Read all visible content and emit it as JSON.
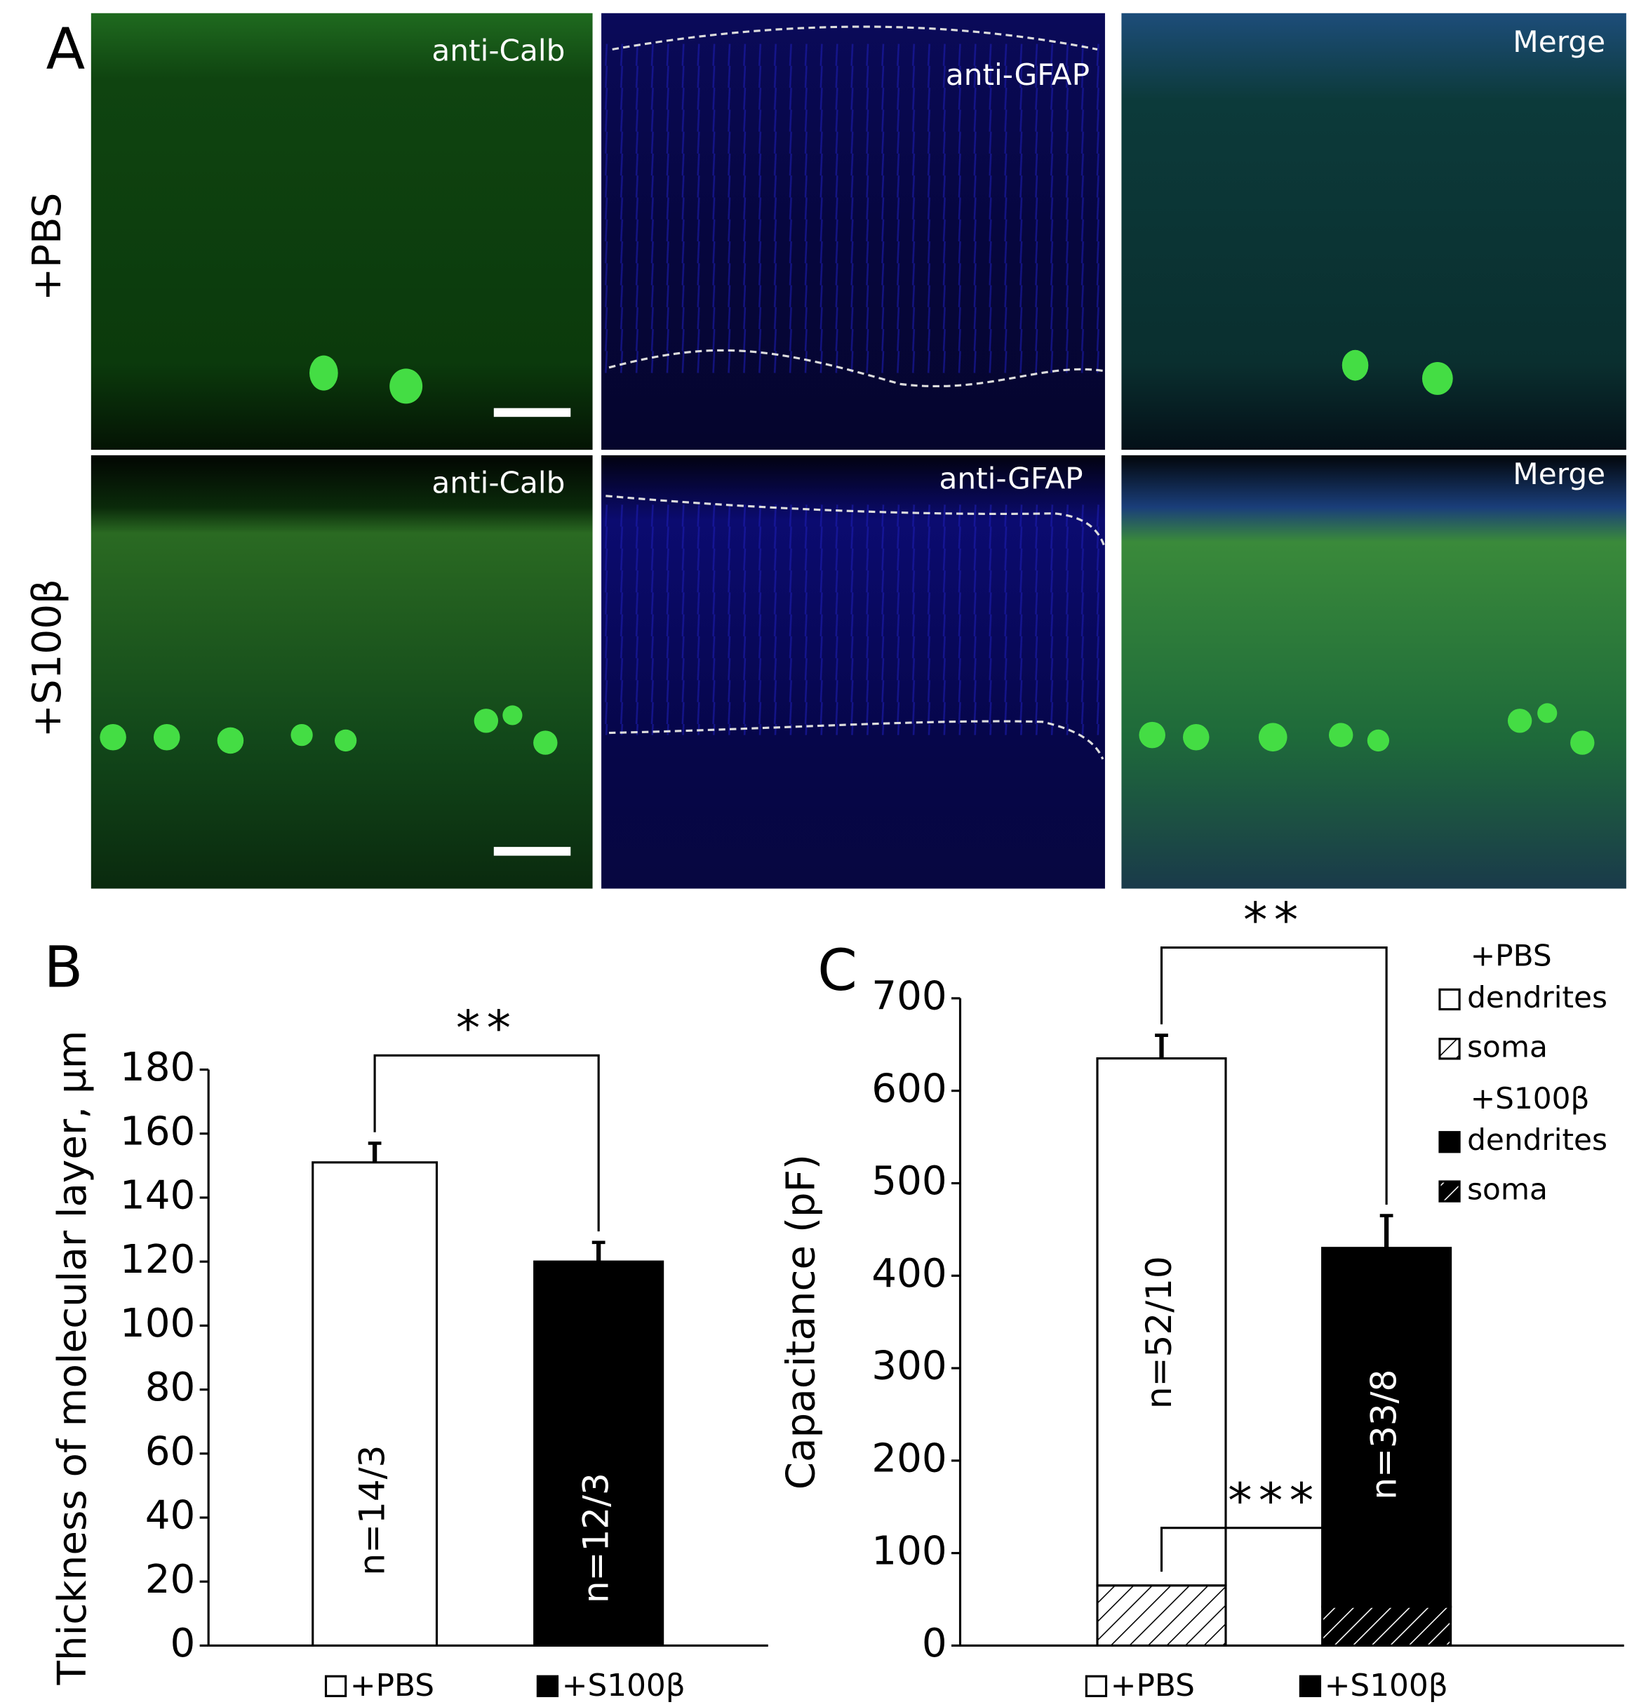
{
  "panel_a": {
    "label": "A",
    "rows": [
      "+PBS",
      "+S100β"
    ],
    "images": [
      [
        "anti-Calb",
        "anti-GFAP",
        "Merge"
      ],
      [
        "anti-Calb",
        "anti-GFAP",
        "Merge"
      ]
    ]
  },
  "chart_data": [
    {
      "type": "bar",
      "panel_label": "B",
      "y_label": "Thickness of molecular layer, µm",
      "categories": [
        "+PBS",
        "+S100β"
      ],
      "values": [
        151,
        120
      ],
      "errors": [
        6,
        6
      ],
      "colors": [
        "#ffffff",
        "#000000"
      ],
      "n_labels": [
        "n=14/3",
        "n=12/3"
      ],
      "significance": [
        "**"
      ],
      "ylim": [
        0,
        180
      ],
      "yticks": [
        0,
        20,
        40,
        60,
        80,
        100,
        120,
        140,
        160,
        180
      ]
    },
    {
      "type": "stacked_bar",
      "panel_label": "C",
      "y_label": "Capacitance (pF)",
      "categories": [
        "+PBS",
        "+S100β"
      ],
      "series": [
        {
          "name": "soma",
          "values": [
            65,
            42
          ],
          "errors": [
            3,
            4
          ]
        },
        {
          "name": "dendrites",
          "values": [
            570,
            388
          ],
          "errors": [
            25,
            35
          ]
        }
      ],
      "colors": [
        "#ffffff",
        "#000000"
      ],
      "n_labels": [
        "n=52/10",
        "n=33/8"
      ],
      "significance": [
        "**",
        "***"
      ],
      "ylim": [
        0,
        700
      ],
      "yticks": [
        0,
        100,
        200,
        300,
        400,
        500,
        600,
        700
      ]
    }
  ]
}
